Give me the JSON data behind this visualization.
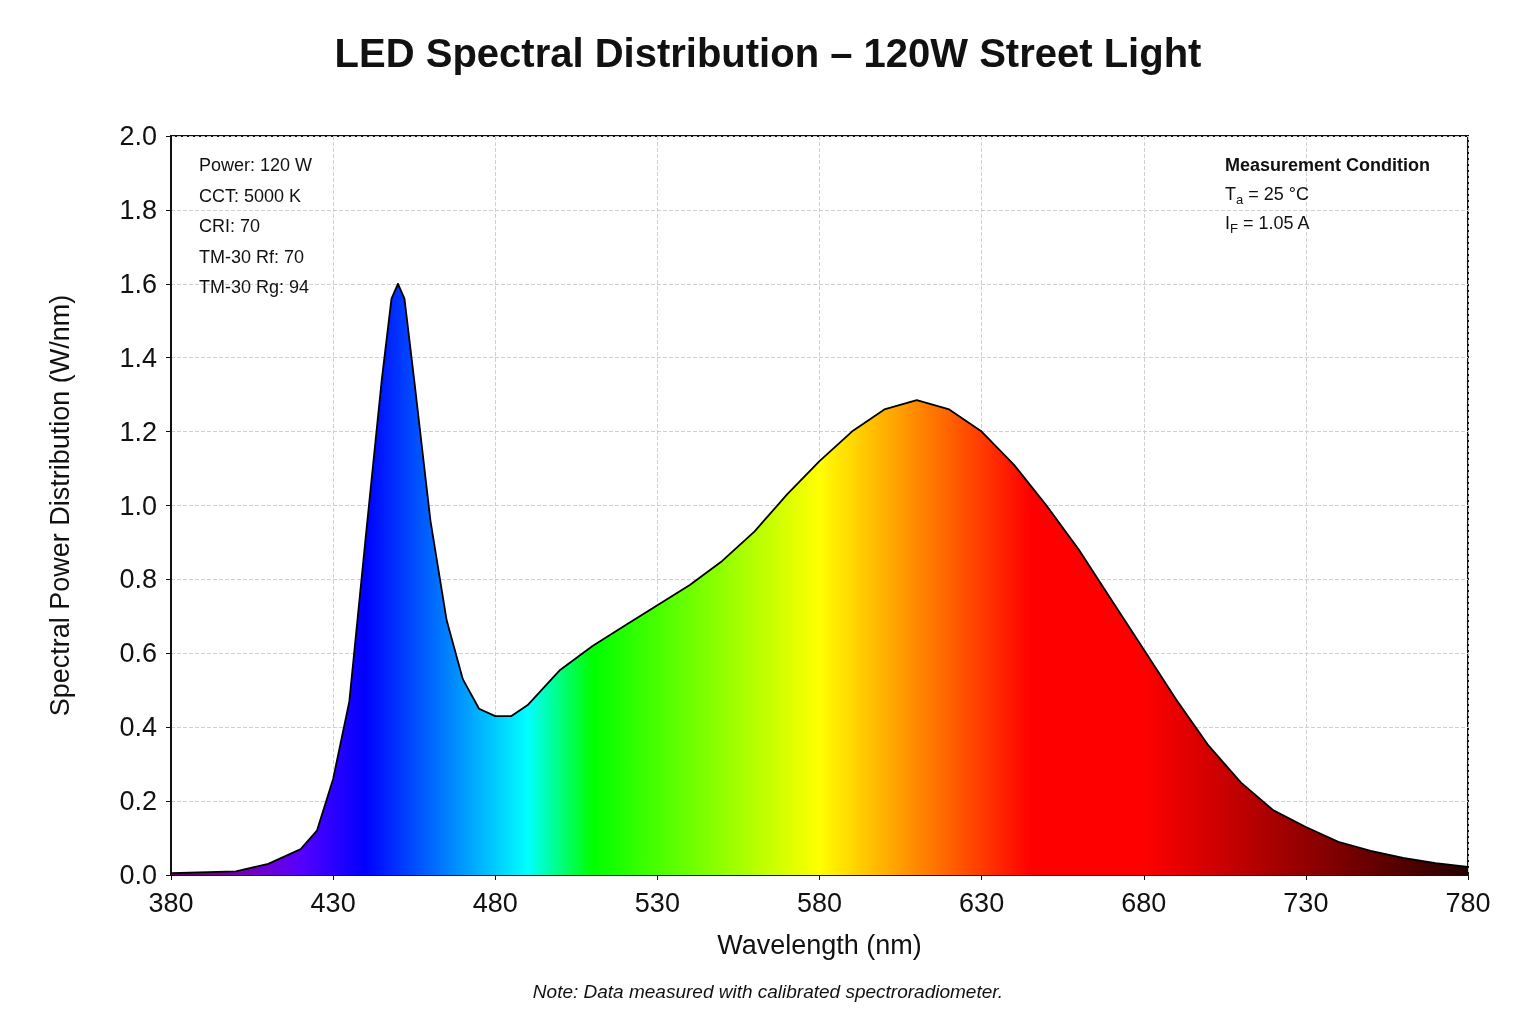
{
  "chart_data": {
    "type": "area",
    "title": "LED Spectral Distribution – 120W Street Light",
    "xlabel": "Wavelength (nm)",
    "ylabel": "Spectral Power Distribution (W/nm)",
    "annotations": [
      "Power: 120 W",
      "CCT: 5000 K",
      "CRI: 70",
      "TM-30 Rf: 70",
      "TM-30 Rg: 94",
      "Measurement Condition",
      "T$_{a}$ = 25 °C",
      "I$_{F}$ = 1.05 A",
      "Note: Data measured with calibrated spectroradiometer."
    ],
    "series": [
      {
        "color": "#000000",
        "x": [
          380,
          400,
          410,
          420,
          425,
          430,
          435,
          440,
          445,
          448,
          450,
          452,
          455,
          460,
          465,
          470,
          475,
          480,
          485,
          490,
          500,
          510,
          520,
          530,
          540,
          550,
          560,
          570,
          580,
          590,
          600,
          610,
          620,
          630,
          640,
          650,
          660,
          670,
          680,
          690,
          700,
          710,
          720,
          730,
          740,
          750,
          760,
          770,
          780
        ],
        "values": [
          0.005,
          0.01,
          0.03,
          0.07,
          0.12,
          0.26,
          0.47,
          0.91,
          1.34,
          1.56,
          1.6,
          1.56,
          1.34,
          0.96,
          0.69,
          0.53,
          0.45,
          0.43,
          0.43,
          0.46,
          0.555,
          0.62,
          0.675,
          0.73,
          0.785,
          0.85,
          0.93,
          1.03,
          1.12,
          1.2,
          1.26,
          1.285,
          1.26,
          1.2,
          1.11,
          1.0,
          0.88,
          0.745,
          0.61,
          0.475,
          0.35,
          0.25,
          0.175,
          0.13,
          0.09,
          0.065,
          0.046,
          0.032,
          0.022
        ]
      }
    ],
    "xlim": [
      380,
      780
    ],
    "xticks": [
      380,
      430,
      480,
      530,
      580,
      630,
      680,
      730,
      780
    ],
    "ylim": [
      0,
      2
    ],
    "yticks": [
      {
        "value": 0,
        "label": "0.0"
      },
      {
        "value": 0.2,
        "label": "0.2"
      },
      {
        "value": 0.4,
        "label": "0.4"
      },
      {
        "value": 0.6,
        "label": "0.6"
      },
      {
        "value": 0.8,
        "label": "0.8"
      },
      {
        "value": 1,
        "label": "1.0"
      },
      {
        "value": 1.2,
        "label": "1.2"
      },
      {
        "value": 1.4,
        "label": "1.4"
      },
      {
        "value": 1.6,
        "label": "1.6"
      },
      {
        "value": 1.8,
        "label": "1.8"
      },
      {
        "value": 2,
        "label": "2.0"
      }
    ],
    "grid": true
  }
}
